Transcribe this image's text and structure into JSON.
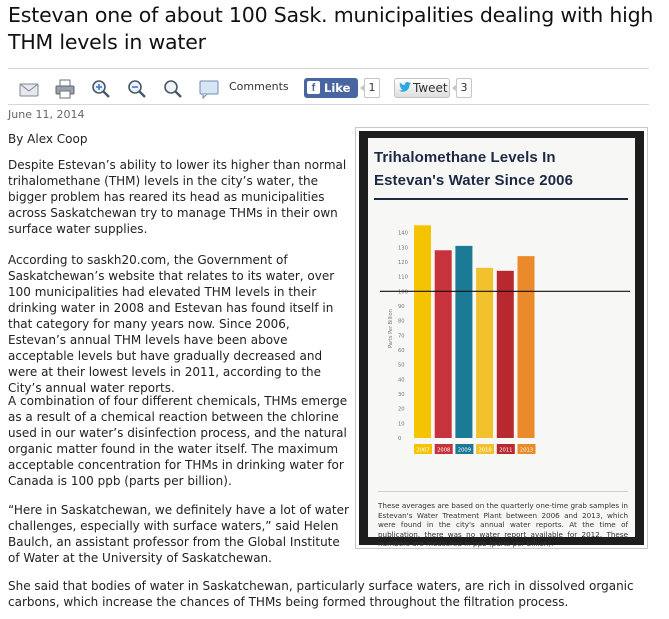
{
  "article": {
    "headline": "Estevan one of about 100 Sask. municipalities dealing with high THM levels in water",
    "date": "June 11, 2014",
    "byline": "By Alex Coop",
    "paragraphs": [
      "Despite Estevan’s ability to lower its higher than normal trihalomethane (THM) levels in the city’s water, the bigger problem has reared its head as municipalities across Saskatchewan try to manage THMs in their own surface water supplies.",
      "According to saskh20.com, the Government of Saskatchewan’s website that relates to its water, over 100 municipalities had elevated THM levels in their drinking water in 2008 and Estevan has found itself in that category for many years now. Since 2006, Estevan’s annual THM levels have been above acceptable levels but have gradually decreased and were at their lowest levels in 2011, according to the City’s annual water reports.",
      "A combination of four different chemicals, THMs emerge as a result of a chemical reaction between the chlorine used in our water’s disinfection process, and the natural organic matter found in the water itself. The maximum acceptable concentration for THMs in drinking water for Canada is 100 ppb (parts per billion).",
      "“Here in Saskatchewan, we definitely have a lot of water challenges, especially with surface waters,” said Helen Baulch, an assistant professor from the Global Institute of Water at the University of Saskatchewan.",
      "She said that bodies of water in Saskatchewan, particularly surface waters, are rich in dissolved organic carbons, which increase the chances of THMs being formed throughout the filtration process."
    ]
  },
  "toolbar": {
    "icons": [
      "email-icon",
      "print-icon",
      "zoom-in-icon",
      "zoom-out-icon",
      "search-icon",
      "comment-icon"
    ],
    "comments_label": "Comments",
    "fb_icon": "f",
    "like_label": "Like",
    "like_count": "1",
    "tweet_label": "Tweet",
    "tweet_count": "3"
  },
  "infographic": {
    "title_line1": "Trihalomethane Levels In",
    "title_line2": "Estevan's Water Since 2006",
    "note": "These averages are based on the quarterly one-time grab samples in Estevan's Water Treatment Plant between 2006 and 2013, which were found in the city's annual water reports. At the time of publication, there was no water report available for 2012. These numbers are measured in ppb (parts per billion)."
  },
  "chart_data": {
    "type": "bar",
    "title": "",
    "xlabel": "",
    "ylabel": "Parts Per Billion",
    "categories": [
      "2007",
      "2008",
      "2009",
      "2010",
      "2011",
      "2013"
    ],
    "values": [
      145,
      128,
      131,
      116,
      114,
      124
    ],
    "colors": [
      "#f5c400",
      "#c8323c",
      "#1b7a96",
      "#f2c12e",
      "#b8292f",
      "#ea8a2a"
    ],
    "reference_line": 100,
    "ylim": [
      0,
      150
    ],
    "yticks": [
      0,
      10,
      20,
      30,
      40,
      50,
      60,
      70,
      80,
      90,
      100,
      110,
      120,
      130,
      140
    ],
    "grid": false
  }
}
